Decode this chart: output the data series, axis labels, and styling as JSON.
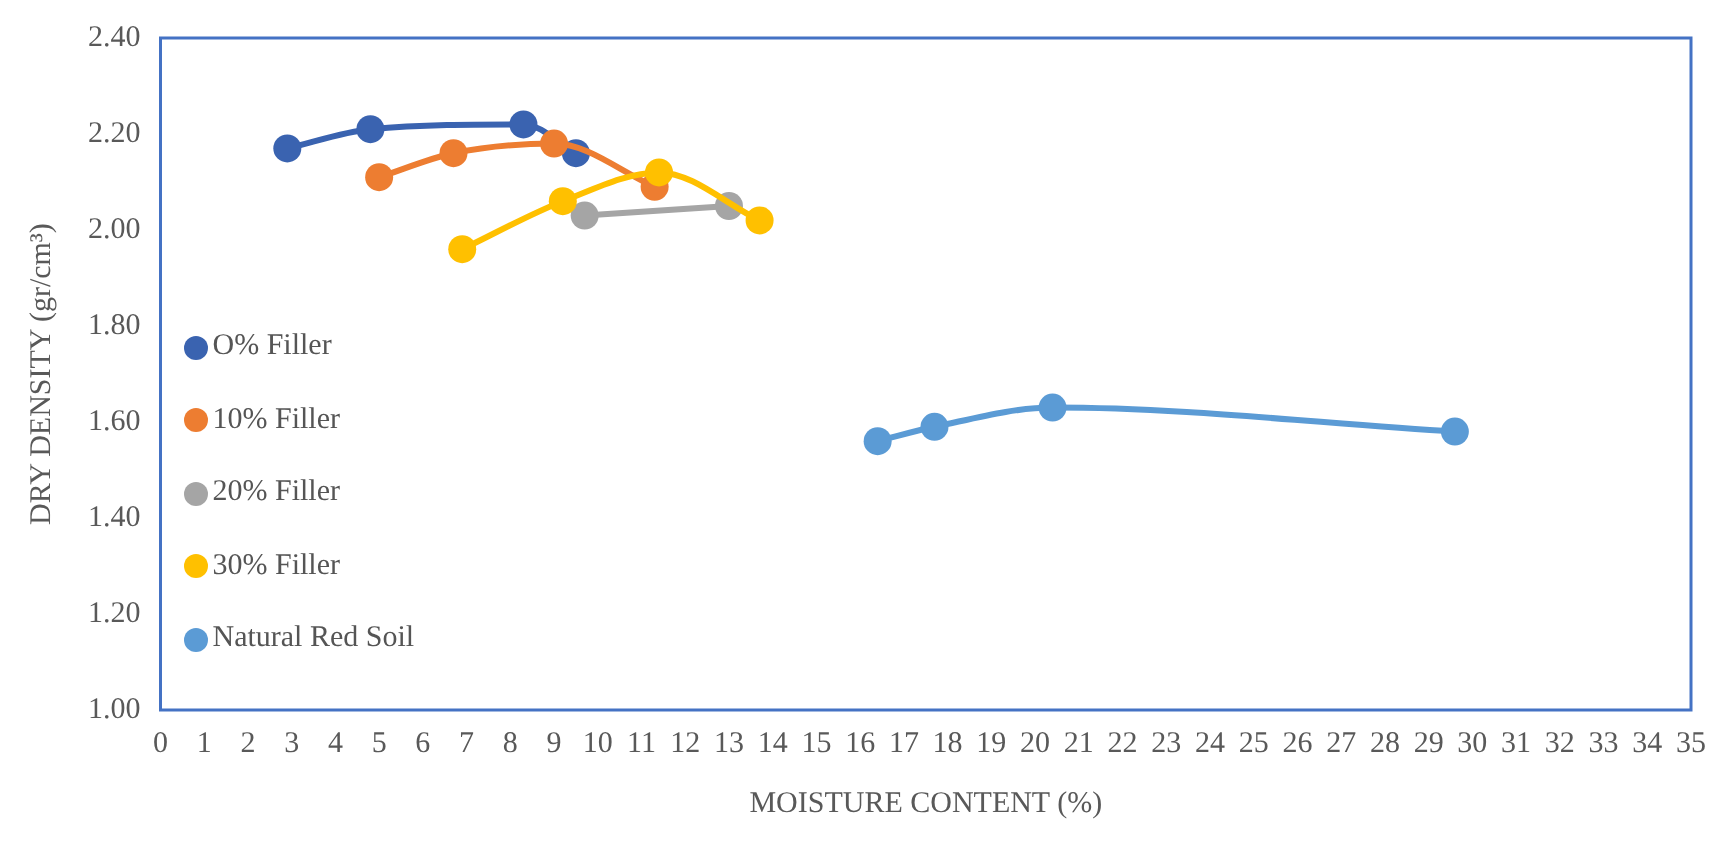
{
  "chart_data": {
    "type": "line",
    "xlabel": "MOISTURE CONTENT (%)",
    "ylabel": "DRY DENSITY (gr/cm³)",
    "xlim": [
      0,
      35
    ],
    "xticks": [
      0,
      1,
      2,
      3,
      4,
      5,
      6,
      7,
      8,
      9,
      10,
      11,
      12,
      13,
      14,
      15,
      16,
      17,
      18,
      19,
      20,
      21,
      22,
      23,
      24,
      25,
      26,
      27,
      28,
      29,
      30,
      31,
      32,
      33,
      34,
      35
    ],
    "ylim": [
      1,
      2.4
    ],
    "yticks": [
      {
        "value": 1,
        "label": "1.00"
      },
      {
        "value": 1.2,
        "label": "1.20"
      },
      {
        "value": 1.4,
        "label": "1.40"
      },
      {
        "value": 1.6,
        "label": "1.60"
      },
      {
        "value": 1.8,
        "label": "1.80"
      },
      {
        "value": 2,
        "label": "2.00"
      },
      {
        "value": 2.2,
        "label": "2.20"
      },
      {
        "value": 2.4,
        "label": "2.40"
      }
    ],
    "grid": false,
    "legend": "left",
    "marker": "circle",
    "line_style": "solid",
    "series": [
      {
        "name": "O% Filler",
        "color": "#3a63b0",
        "x": [
          2.9,
          4.8,
          8.3,
          9.5
        ],
        "values": [
          2.17,
          2.21,
          2.22,
          2.16
        ]
      },
      {
        "name": "10% Filler",
        "color": "#ed7d31",
        "x": [
          5.0,
          6.7,
          9.0,
          11.3
        ],
        "values": [
          2.11,
          2.16,
          2.18,
          2.09
        ]
      },
      {
        "name": "20% Filler",
        "color": "#a5a5a5",
        "x": [
          9.7,
          11.4,
          13.0
        ],
        "values": [
          2.03,
          null,
          2.05
        ]
      },
      {
        "name": "30% Filler",
        "color": "#ffc000",
        "x": [
          6.9,
          9.2,
          11.4,
          13.7
        ],
        "values": [
          1.96,
          2.06,
          2.12,
          2.02
        ]
      },
      {
        "name": "Natural Red Soil",
        "color": "#5b9bd5",
        "x": [
          16.4,
          17.7,
          20.4,
          29.6
        ],
        "values": [
          1.56,
          1.59,
          1.63,
          1.58
        ]
      }
    ]
  }
}
